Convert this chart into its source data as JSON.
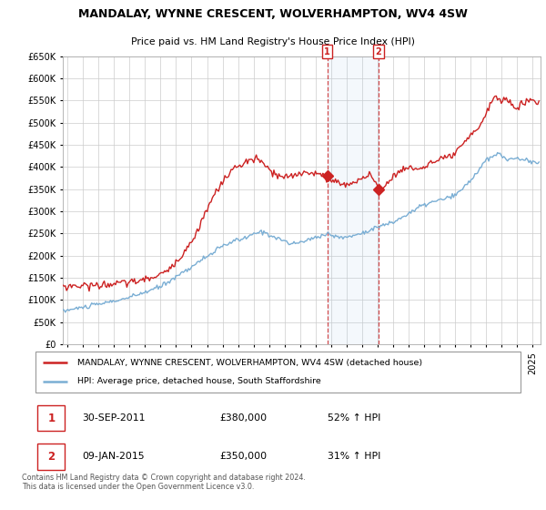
{
  "title": "MANDALAY, WYNNE CRESCENT, WOLVERHAMPTON, WV4 4SW",
  "subtitle": "Price paid vs. HM Land Registry's House Price Index (HPI)",
  "ylim": [
    0,
    650000
  ],
  "yticks": [
    0,
    50000,
    100000,
    150000,
    200000,
    250000,
    300000,
    350000,
    400000,
    450000,
    500000,
    550000,
    600000,
    650000
  ],
  "xlim_start": 1994.7,
  "xlim_end": 2025.5,
  "legend_entry1": "MANDALAY, WYNNE CRESCENT, WOLVERHAMPTON, WV4 4SW (detached house)",
  "legend_entry2": "HPI: Average price, detached house, South Staffordshire",
  "sale1_date": "30-SEP-2011",
  "sale1_price": "£380,000",
  "sale1_hpi": "52% ↑ HPI",
  "sale1_x": 2011.75,
  "sale1_y": 380000,
  "sale2_date": "09-JAN-2015",
  "sale2_price": "£350,000",
  "sale2_hpi": "31% ↑ HPI",
  "sale2_x": 2015.04,
  "sale2_y": 350000,
  "footnote": "Contains HM Land Registry data © Crown copyright and database right 2024.\nThis data is licensed under the Open Government Licence v3.0.",
  "hpi_color": "#7aaed4",
  "price_color": "#cc2222",
  "grid_color": "#cccccc",
  "background_color": "#ffffff"
}
